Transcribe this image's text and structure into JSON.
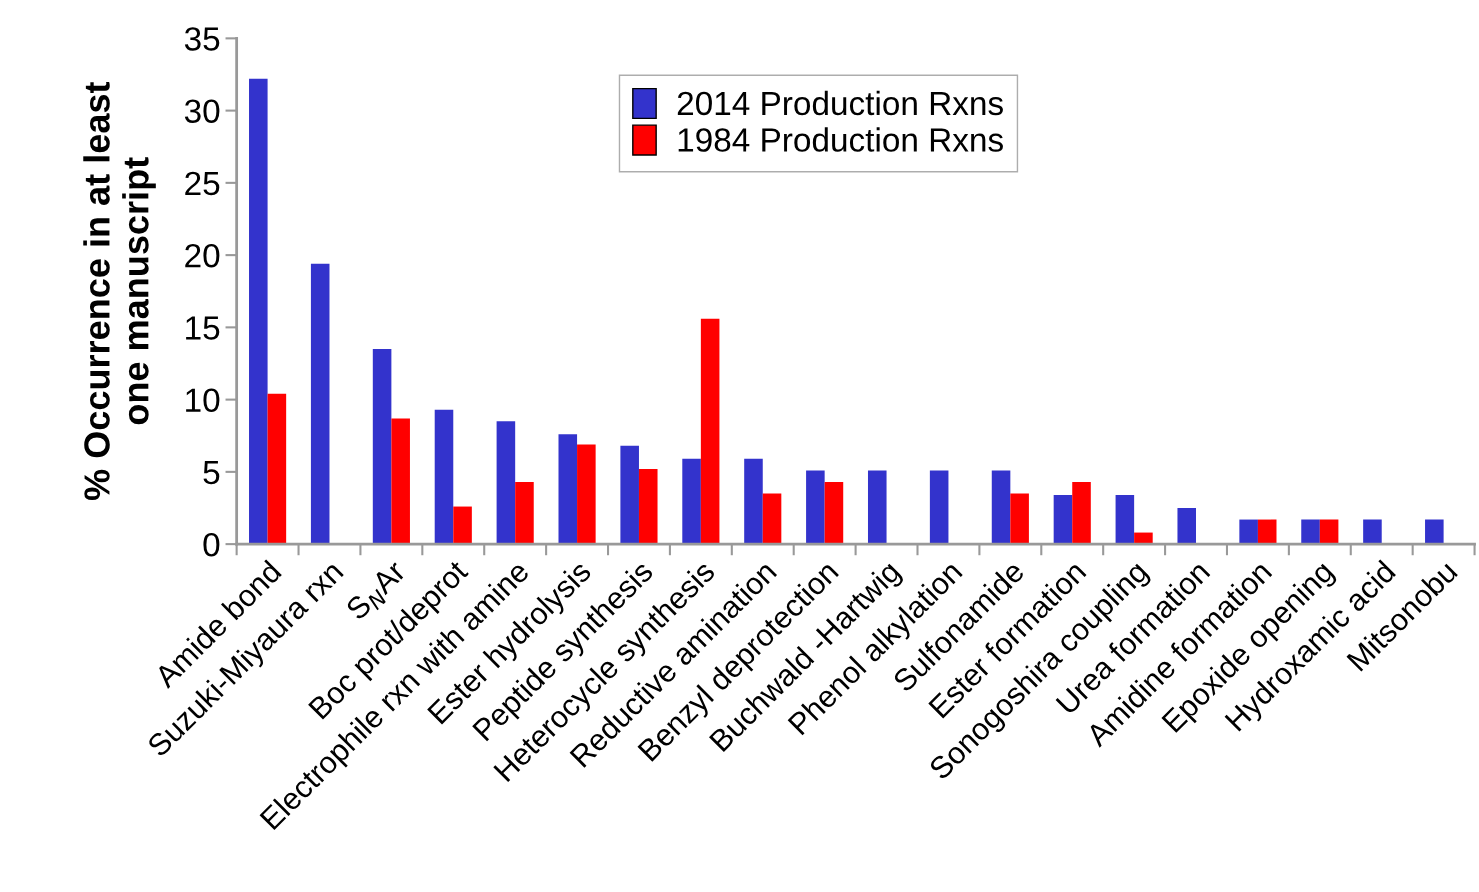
{
  "chart_data": {
    "type": "bar",
    "ylabel": "% Occurrence in at least\none manuscript",
    "categories": [
      "Amide bond",
      "Suzuki-Miyaura rxn",
      "S$_{N}$Ar",
      "Boc prot/deprot",
      "Electrophile rxn with amine",
      "Ester hydrolysis",
      "Peptide synthesis",
      "Heterocycle synthesis",
      "Reductive amination",
      "Benzyl deprotection",
      "Buchwald -Hartwig",
      "Phenol alkylation",
      "Sulfonamide",
      "Ester formation",
      "Sonogoshira coupling",
      "Urea formation",
      "Amidine formation",
      "Epoxide opening",
      "Hydroxamic acid",
      "Mitsonobu"
    ],
    "series": [
      {
        "name": "2014 Production Rxns",
        "color": "#3333cc",
        "values": [
          32.2,
          19.4,
          13.5,
          9.3,
          8.5,
          7.6,
          6.8,
          5.9,
          5.9,
          5.1,
          5.1,
          5.1,
          5.1,
          3.4,
          3.4,
          2.5,
          1.7,
          1.7,
          1.7,
          1.7
        ]
      },
      {
        "name": "1984 Production Rxns",
        "color": "#ff0000",
        "values": [
          10.4,
          null,
          8.7,
          2.6,
          4.3,
          6.9,
          5.2,
          15.6,
          3.5,
          4.3,
          null,
          null,
          3.5,
          4.3,
          0.8,
          null,
          1.7,
          1.7,
          null,
          null
        ]
      }
    ],
    "ylim": [
      0,
      35
    ],
    "yticks": [
      0,
      5,
      10,
      15,
      20,
      25,
      30,
      35
    ],
    "grid": false,
    "legend": "top"
  }
}
